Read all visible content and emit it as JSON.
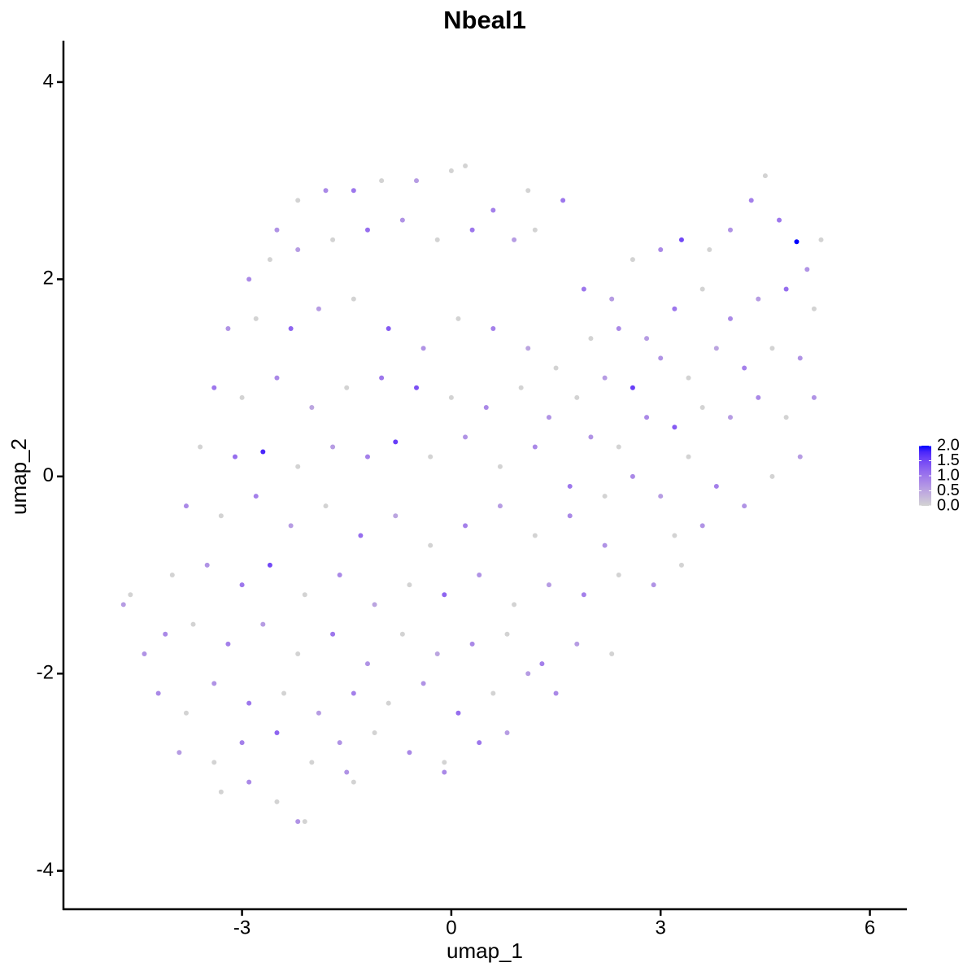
{
  "chart_data": {
    "type": "scatter",
    "title": "Nbeal1",
    "x_label": "umap_1",
    "y_label": "umap_2",
    "x": [
      -2.2,
      -1.8,
      -1.4,
      -1,
      -0.5,
      0,
      0.2,
      0.6,
      1.1,
      1.6,
      -2.5,
      -2.9,
      -2.6,
      -2.2,
      -1.7,
      -1.2,
      -0.7,
      -0.2,
      0.3,
      0.9,
      1.2,
      -3.2,
      -2.8,
      -2.3,
      -1.9,
      -1.4,
      -0.9,
      -0.4,
      0.1,
      0.6,
      1.1,
      1.5,
      -3.4,
      -3,
      -2.5,
      -2,
      -1.5,
      -1,
      -0.5,
      0,
      0.5,
      1,
      1.4,
      -3.6,
      -3.1,
      -2.7,
      -2.2,
      -1.7,
      -1.2,
      -0.8,
      -0.3,
      0.2,
      0.7,
      1.2,
      1.7,
      -3.8,
      -3.3,
      -2.8,
      -2.3,
      -1.8,
      -1.3,
      -0.8,
      -0.3,
      0.2,
      0.7,
      1.2,
      1.7,
      2.2,
      -4,
      -3.5,
      -3,
      -2.6,
      -2.1,
      -1.6,
      -1.1,
      -0.6,
      -0.1,
      0.4,
      0.9,
      1.4,
      1.9,
      2.4,
      2.9,
      3.3,
      -4.7,
      -4.6,
      -4.4,
      -4.1,
      -3.7,
      -3.2,
      -2.7,
      -2.2,
      -1.7,
      -1.2,
      -0.7,
      -0.2,
      0.3,
      0.8,
      1.3,
      1.8,
      2.3,
      -4.2,
      -3.8,
      -3.4,
      -2.9,
      -2.4,
      -1.9,
      -1.4,
      -0.9,
      -0.4,
      0.1,
      0.6,
      1.1,
      1.5,
      -3.9,
      -3.4,
      -3,
      -2.5,
      -2,
      -1.6,
      -1.1,
      -0.6,
      -0.1,
      0.4,
      0.8,
      -3.3,
      -2.9,
      -2.5,
      -2.2,
      -2.1,
      -1.4,
      -1.5,
      -0.1,
      1.9,
      2.3,
      2.6,
      3,
      3.3,
      3.7,
      4,
      4.3,
      4.5,
      4.7,
      4.95,
      5.1,
      5.3,
      2,
      2.4,
      2.8,
      3.2,
      3.6,
      4,
      4.4,
      4.8,
      5.2,
      5,
      4.6,
      4.2,
      3.8,
      3.4,
      3,
      2.6,
      2.2,
      1.8,
      2,
      2.4,
      2.8,
      3.2,
      3.6,
      4,
      4.4,
      4.8,
      5.2,
      5,
      4.6,
      4.2,
      3.8,
      3.4,
      3,
      2.6,
      2.2,
      3.6,
      3.2
    ],
    "values": [
      2.8,
      2.9,
      2.9,
      3,
      3,
      3.1,
      3.15,
      2.7,
      2.9,
      2.8,
      2.5,
      2,
      2.2,
      2.3,
      2.4,
      2.5,
      2.6,
      2.4,
      2.5,
      2.4,
      2.5,
      1.5,
      1.6,
      1.5,
      1.7,
      1.8,
      1.5,
      1.3,
      1.6,
      1.5,
      1.3,
      1.1,
      0.9,
      0.8,
      1,
      0.7,
      0.9,
      1,
      0.9,
      0.8,
      0.7,
      0.9,
      0.6,
      0.3,
      0.2,
      0.25,
      0.1,
      0.3,
      0.2,
      0.35,
      0.2,
      0.4,
      0.1,
      0.3,
      -0.1,
      -0.3,
      -0.4,
      -0.2,
      -0.5,
      -0.3,
      -0.6,
      -0.4,
      -0.7,
      -0.5,
      -0.3,
      -0.6,
      -0.4,
      -0.7,
      -1,
      -0.9,
      -1.1,
      -0.9,
      -1.2,
      -1,
      -1.3,
      -1.1,
      -1.2,
      -1,
      -1.3,
      -1.1,
      -1.2,
      -1,
      -1.1,
      -0.9,
      -1.3,
      -1.2,
      -1.8,
      -1.6,
      -1.5,
      -1.7,
      -1.5,
      -1.8,
      -1.6,
      -1.9,
      -1.6,
      -1.8,
      -1.7,
      -1.6,
      -1.9,
      -1.7,
      -1.8,
      -2.2,
      -2.4,
      -2.1,
      -2.3,
      -2.2,
      -2.4,
      -2.2,
      -2.3,
      -2.1,
      -2.4,
      -2.2,
      -2,
      -2.2,
      -2.8,
      -2.9,
      -2.7,
      -2.6,
      -2.9,
      -2.7,
      -2.6,
      -2.8,
      -2.9,
      -2.7,
      -2.6,
      -3.2,
      -3.1,
      -3.3,
      -3.5,
      -3.5,
      -3.1,
      -3,
      -3,
      1.9,
      1.8,
      2.2,
      2.3,
      2.4,
      2.3,
      2.5,
      2.8,
      3.05,
      2.6,
      2.38,
      2.1,
      2.4,
      1.4,
      1.5,
      1.4,
      1.7,
      1.9,
      1.6,
      1.8,
      1.9,
      1.7,
      1.2,
      1.3,
      1.1,
      1.3,
      1,
      1.2,
      0.9,
      1,
      0.8,
      0.4,
      0.3,
      0.6,
      0.5,
      0.7,
      0.6,
      0.8,
      0.6,
      0.8,
      0.2,
      0,
      -0.3,
      -0.1,
      0.2,
      -0.2,
      0,
      -0.2,
      -0.5,
      -0.6
    ],
    "expression": [
      0,
      0.8,
      1,
      0,
      0.6,
      0,
      0,
      0.9,
      0,
      1,
      0.7,
      0.8,
      0,
      0.6,
      0,
      1.1,
      0.7,
      0,
      1,
      0.6,
      0,
      0.7,
      0,
      1.2,
      0.6,
      0,
      1.3,
      0.7,
      0,
      0.9,
      0.5,
      0,
      1,
      0,
      0.8,
      0.5,
      0,
      1,
      1.4,
      0,
      0.8,
      0,
      0.7,
      0,
      1.1,
      1.8,
      0,
      0.6,
      0.9,
      1.6,
      0,
      0.7,
      0,
      0.8,
      1,
      0.8,
      0,
      0.9,
      0.6,
      0,
      1.1,
      0.5,
      0,
      0.9,
      0.6,
      0,
      0.8,
      0.7,
      0,
      0.7,
      1,
      1.5,
      0,
      0.8,
      0.5,
      0,
      1.2,
      0.7,
      0,
      0.6,
      0.9,
      0,
      0.7,
      0,
      0.6,
      0,
      0.7,
      0.8,
      0,
      0.9,
      0.6,
      0,
      1,
      0.7,
      0,
      0.5,
      0.8,
      0,
      0.9,
      0.6,
      0,
      0.8,
      0,
      0.7,
      1,
      0,
      0.6,
      0.9,
      0,
      0.7,
      1.1,
      0,
      0.6,
      0.8,
      0.6,
      0,
      0.9,
      1.2,
      0,
      0.7,
      0,
      0.8,
      0,
      1,
      0.6,
      0,
      0.8,
      0,
      0.7,
      0,
      0,
      0.7,
      0.8,
      1,
      0.6,
      0,
      0.8,
      1.5,
      0,
      0.7,
      0.9,
      0,
      1,
      2,
      0.7,
      0,
      0,
      0.8,
      0.6,
      1,
      0,
      0.8,
      0.6,
      1.1,
      0,
      0.7,
      0,
      0.9,
      0.5,
      0,
      0.7,
      1.6,
      0.6,
      0,
      0.7,
      0,
      0.8,
      1.3,
      0,
      0.6,
      0.8,
      0,
      0.7,
      0.6,
      0,
      0.7,
      0.9,
      0,
      0.6,
      0.8,
      0,
      0.7,
      0
    ],
    "colors": [
      "#d3d3d3",
      "#0000ff"
    ],
    "clim": [
      0,
      2.0
    ],
    "cticks": [
      {
        "value": 0,
        "label": "0.0"
      },
      {
        "value": 0.5,
        "label": "0.5"
      },
      {
        "value": 1,
        "label": "1.0"
      },
      {
        "value": 1.5,
        "label": "1.5"
      },
      {
        "value": 2,
        "label": "2.0"
      }
    ],
    "xlim": [
      -5.56,
      6.53
    ],
    "xticks": [
      -3,
      0,
      3,
      6
    ],
    "ylim": [
      -4.39,
      4.42
    ],
    "yticks": [
      -4,
      -2,
      0,
      2,
      4
    ]
  }
}
